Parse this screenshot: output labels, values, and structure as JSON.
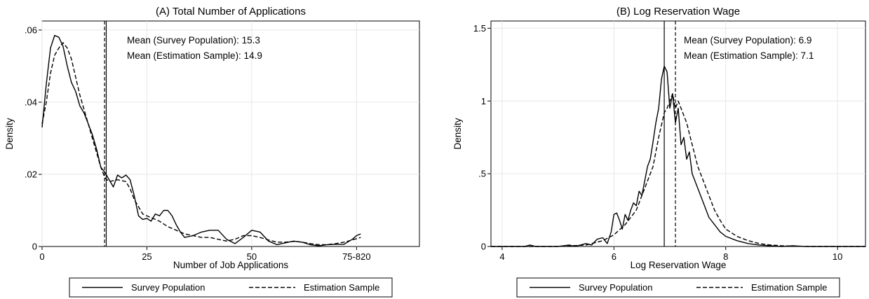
{
  "chart_data": [
    {
      "type": "line",
      "title": "(A) Total Number of Applications",
      "xlabel": "Number of Job Applications",
      "ylabel": "Density",
      "xlim": [
        0,
        90
      ],
      "ylim": [
        0,
        0.0625
      ],
      "xticks": [
        {
          "v": 0,
          "label": "0"
        },
        {
          "v": 25,
          "label": "25"
        },
        {
          "v": 50,
          "label": "50"
        },
        {
          "v": 75,
          "label": "75-820"
        }
      ],
      "yticks": [
        {
          "v": 0,
          "label": "0"
        },
        {
          "v": 0.02,
          "label": ".02"
        },
        {
          "v": 0.04,
          "label": ".04"
        },
        {
          "v": 0.06,
          "label": ".06"
        }
      ],
      "grid": true,
      "legend_position": "bottom",
      "series": [
        {
          "name": "Survey Population",
          "style": "solid",
          "color": "#000000",
          "points": [
            [
              0,
              0.033
            ],
            [
              1,
              0.045
            ],
            [
              2,
              0.055
            ],
            [
              3,
              0.0585
            ],
            [
              4,
              0.058
            ],
            [
              5,
              0.0555
            ],
            [
              6,
              0.05
            ],
            [
              7,
              0.0455
            ],
            [
              8,
              0.043
            ],
            [
              9,
              0.039
            ],
            [
              10,
              0.037
            ],
            [
              11,
              0.034
            ],
            [
              12,
              0.031
            ],
            [
              13,
              0.027
            ],
            [
              14,
              0.022
            ],
            [
              15,
              0.0205
            ],
            [
              16,
              0.0185
            ],
            [
              17,
              0.0165
            ],
            [
              18,
              0.0198
            ],
            [
              19,
              0.019
            ],
            [
              20,
              0.0198
            ],
            [
              21,
              0.0185
            ],
            [
              22,
              0.014
            ],
            [
              23,
              0.0085
            ],
            [
              24,
              0.0075
            ],
            [
              25,
              0.0078
            ],
            [
              26,
              0.007
            ],
            [
              27,
              0.009
            ],
            [
              28,
              0.0085
            ],
            [
              29,
              0.01
            ],
            [
              30,
              0.01
            ],
            [
              31,
              0.0085
            ],
            [
              32,
              0.006
            ],
            [
              33,
              0.004
            ],
            [
              34,
              0.0025
            ],
            [
              36,
              0.003
            ],
            [
              38,
              0.004
            ],
            [
              40,
              0.0045
            ],
            [
              42,
              0.0045
            ],
            [
              44,
              0.002
            ],
            [
              46,
              0.0008
            ],
            [
              48,
              0.0025
            ],
            [
              50,
              0.0045
            ],
            [
              52,
              0.004
            ],
            [
              54,
              0.0015
            ],
            [
              56,
              0.0005
            ],
            [
              58,
              0.001
            ],
            [
              60,
              0.0015
            ],
            [
              62,
              0.0012
            ],
            [
              64,
              0.0005
            ],
            [
              66,
              0.0002
            ],
            [
              68,
              0.0005
            ],
            [
              70,
              0.0006
            ],
            [
              72,
              0.0006
            ],
            [
              74,
              0.002
            ],
            [
              75,
              0.003
            ],
            [
              76,
              0.0035
            ]
          ]
        },
        {
          "name": "Estimation Sample",
          "style": "dashed",
          "color": "#000000",
          "points": [
            [
              0,
              0.034
            ],
            [
              1,
              0.04
            ],
            [
              2,
              0.048
            ],
            [
              3,
              0.053
            ],
            [
              4,
              0.055
            ],
            [
              5,
              0.0565
            ],
            [
              6,
              0.055
            ],
            [
              7,
              0.052
            ],
            [
              8,
              0.047
            ],
            [
              9,
              0.042
            ],
            [
              10,
              0.038
            ],
            [
              11,
              0.034
            ],
            [
              12,
              0.03
            ],
            [
              13,
              0.026
            ],
            [
              14,
              0.022
            ],
            [
              15,
              0.019
            ],
            [
              16,
              0.018
            ],
            [
              18,
              0.0185
            ],
            [
              20,
              0.018
            ],
            [
              21,
              0.016
            ],
            [
              22,
              0.013
            ],
            [
              24,
              0.009
            ],
            [
              26,
              0.008
            ],
            [
              28,
              0.007
            ],
            [
              30,
              0.0055
            ],
            [
              32,
              0.0045
            ],
            [
              34,
              0.0035
            ],
            [
              36,
              0.003
            ],
            [
              38,
              0.0025
            ],
            [
              40,
              0.0025
            ],
            [
              42,
              0.002
            ],
            [
              44,
              0.0015
            ],
            [
              46,
              0.002
            ],
            [
              48,
              0.003
            ],
            [
              50,
              0.003
            ],
            [
              52,
              0.0025
            ],
            [
              54,
              0.0018
            ],
            [
              56,
              0.0012
            ],
            [
              58,
              0.0012
            ],
            [
              60,
              0.0014
            ],
            [
              62,
              0.0012
            ],
            [
              64,
              0.0008
            ],
            [
              66,
              0.0005
            ],
            [
              68,
              0.0005
            ],
            [
              70,
              0.0008
            ],
            [
              72,
              0.0012
            ],
            [
              74,
              0.0018
            ],
            [
              76,
              0.0025
            ]
          ]
        }
      ],
      "vlines": [
        {
          "x": 15.3,
          "style": "solid"
        },
        {
          "x": 14.9,
          "style": "dashed"
        }
      ],
      "annotations": [
        "Mean (Survey Population): 15.3",
        "Mean (Estimation Sample): 14.9"
      ],
      "legend": [
        "Survey Population",
        "Estimation Sample"
      ]
    },
    {
      "type": "line",
      "title": "(B) Log Reservation Wage",
      "xlabel": "Log Reservation Wage",
      "ylabel": "Density",
      "xlim": [
        3.8,
        10.5
      ],
      "ylim": [
        0,
        1.55
      ],
      "xticks": [
        {
          "v": 4,
          "label": "4"
        },
        {
          "v": 6,
          "label": "6"
        },
        {
          "v": 8,
          "label": "8"
        },
        {
          "v": 10,
          "label": "10"
        }
      ],
      "yticks": [
        {
          "v": 0,
          "label": "0"
        },
        {
          "v": 0.5,
          "label": ".5"
        },
        {
          "v": 1,
          "label": "1"
        },
        {
          "v": 1.5,
          "label": "1.5"
        }
      ],
      "grid": true,
      "legend_position": "bottom",
      "series": [
        {
          "name": "Survey Population",
          "style": "solid",
          "color": "#000000",
          "points": [
            [
              3.8,
              0
            ],
            [
              4.4,
              0
            ],
            [
              4.5,
              0.01
            ],
            [
              4.6,
              0
            ],
            [
              5.0,
              0
            ],
            [
              5.2,
              0.01
            ],
            [
              5.3,
              0
            ],
            [
              5.5,
              0.02
            ],
            [
              5.6,
              0.01
            ],
            [
              5.7,
              0.05
            ],
            [
              5.8,
              0.06
            ],
            [
              5.88,
              0.02
            ],
            [
              5.95,
              0.1
            ],
            [
              6.0,
              0.22
            ],
            [
              6.05,
              0.23
            ],
            [
              6.1,
              0.18
            ],
            [
              6.15,
              0.12
            ],
            [
              6.2,
              0.22
            ],
            [
              6.25,
              0.18
            ],
            [
              6.3,
              0.25
            ],
            [
              6.35,
              0.3
            ],
            [
              6.4,
              0.28
            ],
            [
              6.45,
              0.38
            ],
            [
              6.5,
              0.35
            ],
            [
              6.55,
              0.45
            ],
            [
              6.6,
              0.55
            ],
            [
              6.65,
              0.6
            ],
            [
              6.7,
              0.72
            ],
            [
              6.75,
              0.85
            ],
            [
              6.8,
              0.95
            ],
            [
              6.85,
              1.15
            ],
            [
              6.9,
              1.24
            ],
            [
              6.95,
              1.2
            ],
            [
              7.0,
              0.95
            ],
            [
              7.05,
              1.05
            ],
            [
              7.1,
              0.85
            ],
            [
              7.15,
              0.95
            ],
            [
              7.2,
              0.7
            ],
            [
              7.25,
              0.75
            ],
            [
              7.3,
              0.6
            ],
            [
              7.35,
              0.65
            ],
            [
              7.4,
              0.5
            ],
            [
              7.5,
              0.4
            ],
            [
              7.6,
              0.3
            ],
            [
              7.7,
              0.2
            ],
            [
              7.8,
              0.15
            ],
            [
              7.9,
              0.1
            ],
            [
              8.0,
              0.07
            ],
            [
              8.2,
              0.04
            ],
            [
              8.4,
              0.02
            ],
            [
              8.6,
              0.01
            ],
            [
              9.0,
              0
            ],
            [
              9.2,
              0.005
            ],
            [
              9.4,
              0
            ],
            [
              10.5,
              0
            ]
          ]
        },
        {
          "name": "Estimation Sample",
          "style": "dashed",
          "color": "#000000",
          "points": [
            [
              3.8,
              0
            ],
            [
              5.0,
              0
            ],
            [
              5.5,
              0.01
            ],
            [
              5.8,
              0.04
            ],
            [
              6.0,
              0.08
            ],
            [
              6.2,
              0.15
            ],
            [
              6.3,
              0.2
            ],
            [
              6.4,
              0.25
            ],
            [
              6.5,
              0.35
            ],
            [
              6.6,
              0.45
            ],
            [
              6.7,
              0.55
            ],
            [
              6.8,
              0.75
            ],
            [
              6.9,
              0.92
            ],
            [
              6.95,
              0.95
            ],
            [
              7.0,
              1.0
            ],
            [
              7.05,
              1.05
            ],
            [
              7.1,
              0.95
            ],
            [
              7.15,
              1.0
            ],
            [
              7.2,
              0.95
            ],
            [
              7.3,
              0.85
            ],
            [
              7.4,
              0.7
            ],
            [
              7.5,
              0.55
            ],
            [
              7.6,
              0.45
            ],
            [
              7.7,
              0.35
            ],
            [
              7.8,
              0.25
            ],
            [
              7.9,
              0.18
            ],
            [
              8.0,
              0.12
            ],
            [
              8.2,
              0.07
            ],
            [
              8.4,
              0.04
            ],
            [
              8.6,
              0.02
            ],
            [
              8.8,
              0.01
            ],
            [
              9.0,
              0.005
            ],
            [
              9.5,
              0
            ],
            [
              10.5,
              0
            ]
          ]
        }
      ],
      "vlines": [
        {
          "x": 6.9,
          "style": "solid"
        },
        {
          "x": 7.1,
          "style": "dashed"
        }
      ],
      "annotations": [
        "Mean (Survey Population): 6.9",
        "Mean (Estimation Sample):  7.1"
      ],
      "legend": [
        "Survey Population",
        "Estimation Sample"
      ]
    }
  ]
}
